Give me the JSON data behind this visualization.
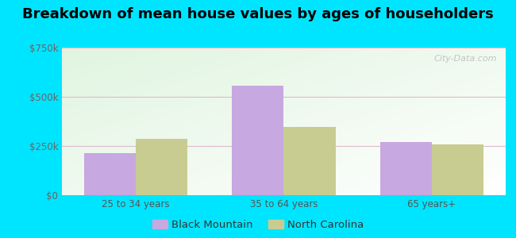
{
  "title": "Breakdown of mean house values by ages of householders",
  "categories": [
    "25 to 34 years",
    "35 to 64 years",
    "65 years+"
  ],
  "black_mountain_values": [
    215000,
    555000,
    270000
  ],
  "north_carolina_values": [
    285000,
    345000,
    260000
  ],
  "bar_color_bm": "#c8a8e0",
  "bar_color_nc": "#c8cc90",
  "ylim": [
    0,
    750000
  ],
  "yticks": [
    0,
    250000,
    500000,
    750000
  ],
  "ytick_labels": [
    "$0",
    "$250k",
    "$500k",
    "$750k"
  ],
  "legend_labels": [
    "Black Mountain",
    "North Carolina"
  ],
  "background_outer": "#00e5ff",
  "watermark": "City-Data.com",
  "title_fontsize": 13,
  "tick_fontsize": 8.5,
  "legend_fontsize": 9.5,
  "bar_width": 0.35,
  "group_positions": [
    1,
    2,
    3
  ]
}
